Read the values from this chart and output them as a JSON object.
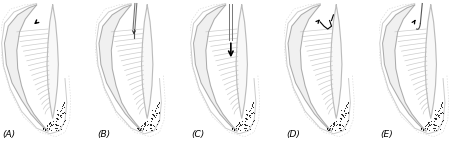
{
  "background_color": "#ffffff",
  "figure_width": 4.74,
  "figure_height": 1.43,
  "dpi": 100,
  "panels": [
    "(A)",
    "(B)",
    "(C)",
    "(D)",
    "(E)"
  ],
  "outline_color": "#aaaaaa",
  "stipple_color": "#111111",
  "line_color": "#bbbbbb",
  "arrow_color": "#000000",
  "label_fontsize": 6.5
}
